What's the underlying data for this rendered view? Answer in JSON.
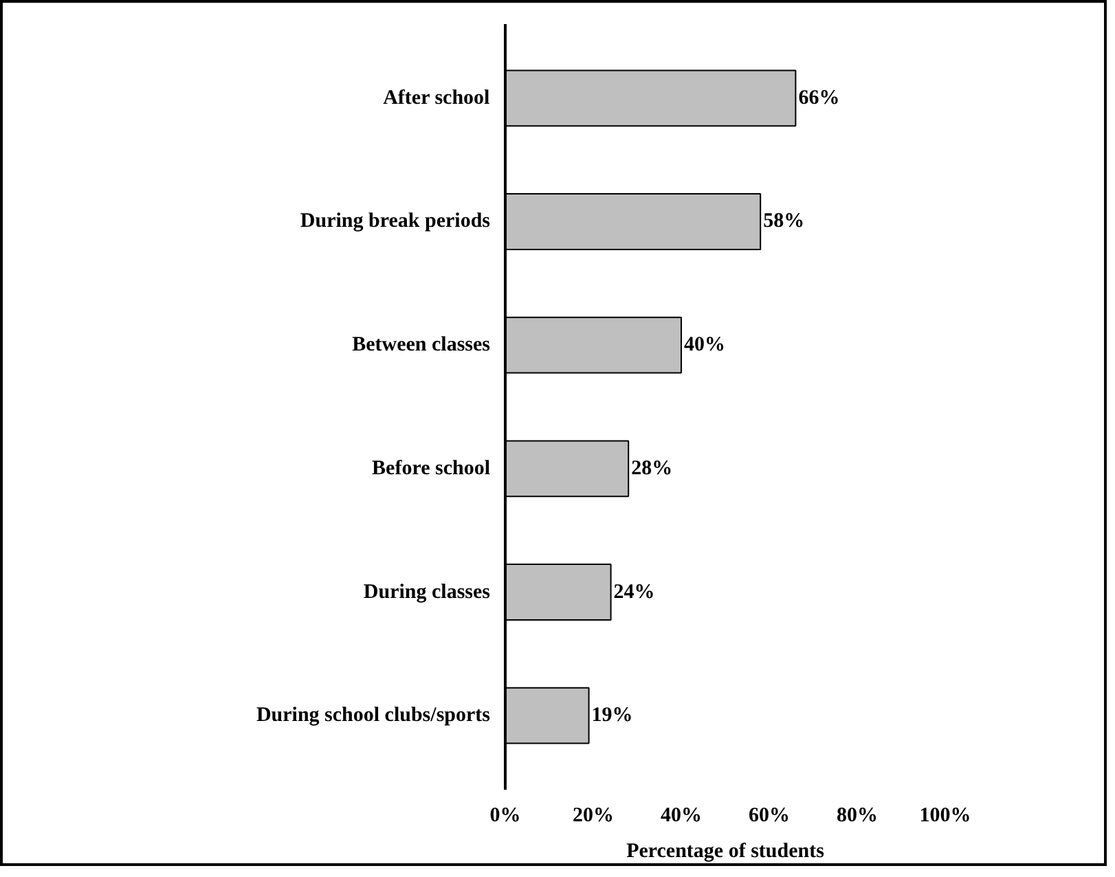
{
  "chart_data": {
    "type": "bar",
    "orientation": "horizontal",
    "xlabel": "Percentage of students",
    "categories": [
      "After school",
      "During break periods",
      "Between classes",
      "Before school",
      "During classes",
      "During school clubs/sports"
    ],
    "values": [
      66,
      58,
      40,
      28,
      24,
      19
    ],
    "value_labels": [
      "66%",
      "58%",
      "40%",
      "28%",
      "24%",
      "19%"
    ],
    "color": "#bfbfbf",
    "xlim": [
      0,
      100
    ],
    "xticks": [
      {
        "value": 0,
        "label": "0%"
      },
      {
        "value": 20,
        "label": "20%"
      },
      {
        "value": 40,
        "label": "40%"
      },
      {
        "value": 60,
        "label": "60%"
      },
      {
        "value": 80,
        "label": "80%"
      },
      {
        "value": 100,
        "label": "100%"
      }
    ],
    "grid": false
  }
}
